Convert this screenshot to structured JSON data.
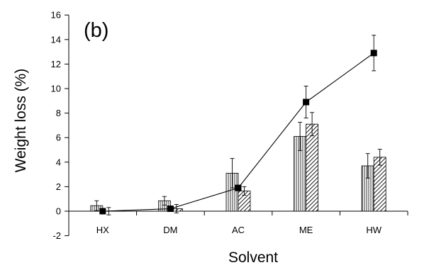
{
  "chart_data": {
    "type": "bar",
    "panel_label": "(b)",
    "xlabel": "Solvent",
    "ylabel": "Weight loss (%)",
    "categories": [
      "HX",
      "DM",
      "AC",
      "ME",
      "HW"
    ],
    "ylim": [
      -2,
      16
    ],
    "yticks": [
      -2,
      0,
      2,
      4,
      6,
      8,
      10,
      12,
      14,
      16
    ],
    "grid": false,
    "legend": "none",
    "series": [
      {
        "kind": "bar",
        "pattern": "vertical-hatch",
        "values": [
          0.45,
          0.85,
          3.1,
          6.1,
          3.7
        ],
        "errors": [
          0.4,
          0.35,
          1.2,
          1.15,
          1.0
        ]
      },
      {
        "kind": "bar",
        "pattern": "diagonal-hatch",
        "values": [
          0.0,
          0.2,
          1.65,
          7.1,
          4.4
        ],
        "errors": [
          0.3,
          0.35,
          0.35,
          0.95,
          0.65
        ]
      },
      {
        "kind": "line",
        "marker": "filled-square",
        "values": [
          0.0,
          0.2,
          1.9,
          8.9,
          12.9
        ],
        "errors": [
          0.0,
          0.0,
          0.0,
          1.3,
          1.45
        ]
      }
    ],
    "colors": {
      "axis": "#000000",
      "bar_fill": "#ffffff",
      "hatch": "#000000",
      "line": "#000000"
    }
  }
}
